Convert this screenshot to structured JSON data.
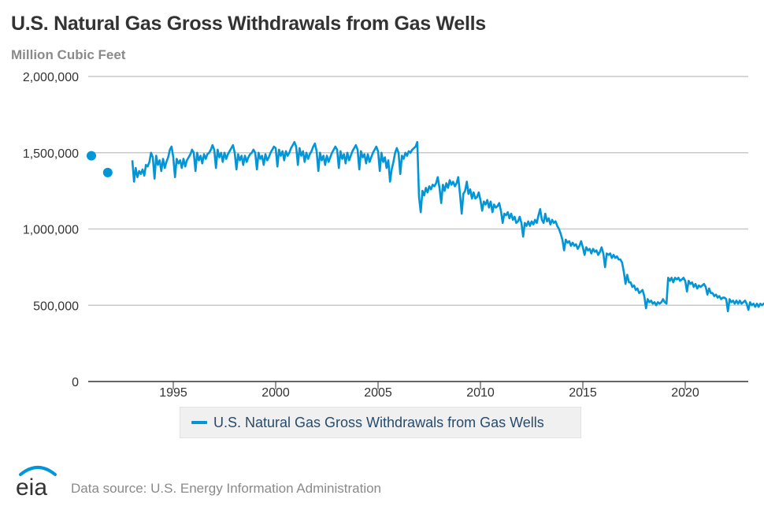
{
  "title": "U.S. Natural Gas Gross Withdrawals from Gas Wells",
  "subtitle": "Million Cubic Feet",
  "legend": {
    "label": "U.S. Natural Gas Gross Withdrawals from Gas Wells",
    "color": "#0096d7"
  },
  "footer": {
    "logo_text": "eia",
    "source": "Data source: U.S. Energy Information Administration"
  },
  "colors": {
    "series": "#0096d7",
    "grid": "#c8c8c8",
    "axis": "#333333",
    "logo_arc": "#0096d7",
    "logo_text": "#333333"
  },
  "chart_data": {
    "type": "line",
    "title": "U.S. Natural Gas Gross Withdrawals from Gas Wells",
    "ylabel": "Million Cubic Feet",
    "xlabel": "",
    "ylim": [
      0,
      2000000
    ],
    "xlim": [
      1990.6,
      2023.0
    ],
    "y_ticks": [
      0,
      500000,
      1000000,
      1500000,
      2000000
    ],
    "y_tick_labels": [
      "0",
      "500,000",
      "1,000,000",
      "1,500,000",
      "2,000,000"
    ],
    "x_ticks": [
      1995,
      2000,
      2005,
      2010,
      2015,
      2020
    ],
    "x_tick_labels": [
      "1995",
      "2000",
      "2005",
      "2010",
      "2015",
      "2020"
    ],
    "grid": true,
    "legend_position": "bottom-center",
    "series": [
      {
        "name": "U.S. Natural Gas Gross Withdrawals from Gas Wells",
        "isolated_points": [
          {
            "x": 1991.0,
            "y": 1480000
          },
          {
            "x": 1991.8,
            "y": 1370000
          }
        ],
        "start": 1993.0,
        "step_years": 0.0833333,
        "values": [
          1450000,
          1310000,
          1400000,
          1340000,
          1380000,
          1360000,
          1390000,
          1350000,
          1420000,
          1410000,
          1440000,
          1500000,
          1470000,
          1330000,
          1480000,
          1420000,
          1450000,
          1380000,
          1460000,
          1400000,
          1440000,
          1470000,
          1520000,
          1540000,
          1470000,
          1340000,
          1460000,
          1430000,
          1450000,
          1400000,
          1460000,
          1410000,
          1450000,
          1470000,
          1490000,
          1520000,
          1500000,
          1380000,
          1500000,
          1450000,
          1480000,
          1430000,
          1490000,
          1460000,
          1490000,
          1500000,
          1520000,
          1550000,
          1520000,
          1400000,
          1520000,
          1470000,
          1500000,
          1440000,
          1500000,
          1460000,
          1490000,
          1510000,
          1530000,
          1550000,
          1500000,
          1390000,
          1490000,
          1450000,
          1480000,
          1420000,
          1480000,
          1440000,
          1470000,
          1490000,
          1500000,
          1520000,
          1500000,
          1390000,
          1500000,
          1460000,
          1480000,
          1420000,
          1490000,
          1450000,
          1470000,
          1500000,
          1520000,
          1540000,
          1530000,
          1410000,
          1520000,
          1480000,
          1510000,
          1450000,
          1510000,
          1480000,
          1500000,
          1530000,
          1550000,
          1570000,
          1540000,
          1420000,
          1530000,
          1480000,
          1510000,
          1440000,
          1500000,
          1460000,
          1490000,
          1510000,
          1540000,
          1560000,
          1510000,
          1380000,
          1500000,
          1450000,
          1480000,
          1420000,
          1480000,
          1440000,
          1470000,
          1500000,
          1520000,
          1540000,
          1520000,
          1400000,
          1510000,
          1460000,
          1490000,
          1430000,
          1500000,
          1450000,
          1480000,
          1510000,
          1530000,
          1550000,
          1520000,
          1390000,
          1510000,
          1470000,
          1490000,
          1430000,
          1490000,
          1440000,
          1470000,
          1500000,
          1520000,
          1540000,
          1510000,
          1380000,
          1500000,
          1440000,
          1470000,
          1400000,
          1450000,
          1310000,
          1390000,
          1440000,
          1500000,
          1530000,
          1500000,
          1360000,
          1480000,
          1460000,
          1500000,
          1480000,
          1510000,
          1500000,
          1520000,
          1530000,
          1540000,
          1570000,
          1210000,
          1110000,
          1250000,
          1220000,
          1270000,
          1240000,
          1280000,
          1260000,
          1290000,
          1280000,
          1300000,
          1340000,
          1270000,
          1170000,
          1290000,
          1250000,
          1300000,
          1270000,
          1320000,
          1290000,
          1310000,
          1280000,
          1300000,
          1340000,
          1230000,
          1100000,
          1230000,
          1250000,
          1310000,
          1230000,
          1260000,
          1200000,
          1240000,
          1200000,
          1210000,
          1240000,
          1190000,
          1120000,
          1180000,
          1160000,
          1190000,
          1140000,
          1180000,
          1110000,
          1160000,
          1140000,
          1150000,
          1170000,
          1120000,
          1040000,
          1100000,
          1090000,
          1110000,
          1070000,
          1100000,
          1060000,
          1080000,
          1040000,
          1050000,
          1080000,
          1040000,
          950000,
          1040000,
          1020000,
          1050000,
          1020000,
          1050000,
          1030000,
          1060000,
          1040000,
          1090000,
          1130000,
          1060000,
          1040000,
          1100000,
          1050000,
          1070000,
          1030000,
          1060000,
          1040000,
          1050000,
          1020000,
          1000000,
          970000,
          930000,
          860000,
          930000,
          910000,
          920000,
          890000,
          910000,
          890000,
          900000,
          870000,
          890000,
          920000,
          880000,
          830000,
          880000,
          860000,
          870000,
          840000,
          870000,
          850000,
          860000,
          830000,
          850000,
          880000,
          840000,
          750000,
          840000,
          830000,
          840000,
          810000,
          830000,
          810000,
          820000,
          800000,
          800000,
          780000,
          720000,
          640000,
          700000,
          650000,
          650000,
          620000,
          630000,
          600000,
          610000,
          580000,
          590000,
          600000,
          560000,
          480000,
          540000,
          520000,
          530000,
          510000,
          520000,
          500000,
          520000,
          510000,
          520000,
          540000,
          520000,
          510000,
          680000,
          660000,
          680000,
          650000,
          680000,
          670000,
          680000,
          660000,
          670000,
          680000,
          660000,
          590000,
          660000,
          640000,
          650000,
          620000,
          640000,
          610000,
          630000,
          620000,
          630000,
          640000,
          620000,
          570000,
          610000,
          580000,
          580000,
          560000,
          570000,
          550000,
          560000,
          540000,
          550000,
          550000,
          540000,
          460000,
          540000,
          520000,
          530000,
          510000,
          530000,
          510000,
          530000,
          510000,
          520000,
          530000,
          510000,
          470000,
          520000,
          500000,
          510000,
          490000,
          510000,
          490000,
          510000,
          500000,
          510000,
          520000,
          500000,
          490000
        ]
      }
    ]
  }
}
